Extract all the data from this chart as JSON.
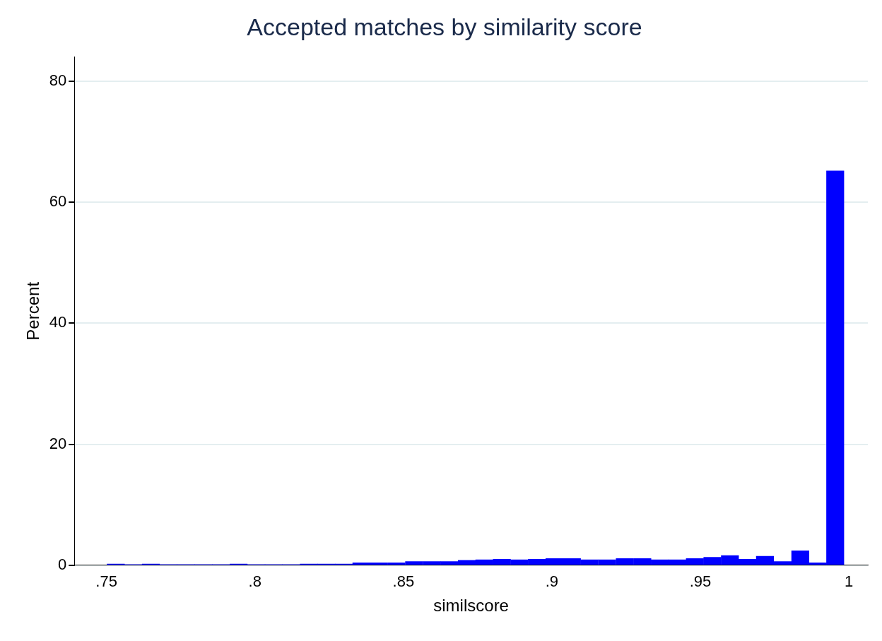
{
  "chart_data": {
    "type": "histogram",
    "title": "Accepted matches by similarity score",
    "xlabel": "similscore",
    "ylabel": "Percent",
    "bins": [
      0.7502,
      0.7561,
      0.762,
      0.7679,
      0.7738,
      0.7797,
      0.7856,
      0.7915,
      0.7975,
      0.8034,
      0.8093,
      0.8152,
      0.8211,
      0.827,
      0.8329,
      0.8388,
      0.8447,
      0.8506,
      0.8566,
      0.8625,
      0.8684,
      0.8743,
      0.8802,
      0.8861,
      0.892,
      0.8979,
      0.9038,
      0.9097,
      0.9156,
      0.9216,
      0.9275,
      0.9334,
      0.9393,
      0.9452,
      0.9511,
      0.957,
      0.9629,
      0.9688,
      0.9747,
      0.9807,
      0.9866,
      0.9925,
      0.9983
    ],
    "values": [
      0.2,
      0.1,
      0.2,
      0.1,
      0.1,
      0.1,
      0.1,
      0.2,
      0.1,
      0.1,
      0.1,
      0.2,
      0.2,
      0.2,
      0.4,
      0.4,
      0.4,
      0.6,
      0.6,
      0.6,
      0.8,
      0.9,
      1.0,
      0.9,
      1.0,
      1.1,
      1.1,
      0.9,
      0.9,
      1.1,
      1.1,
      0.9,
      0.9,
      1.1,
      1.3,
      1.6,
      1.0,
      1.5,
      0.6,
      2.4,
      0.4,
      65.2
    ],
    "color": "#0000ff",
    "xlim": [
      0.7392,
      1.0064
    ],
    "xticks": [
      {
        "value": 0.75,
        "label": ".75"
      },
      {
        "value": 0.8,
        "label": ".8"
      },
      {
        "value": 0.85,
        "label": ".85"
      },
      {
        "value": 0.9,
        "label": ".9"
      },
      {
        "value": 0.95,
        "label": ".95"
      },
      1
    ],
    "ylim": [
      0,
      84
    ],
    "yticks": [
      0,
      20,
      40,
      60,
      80
    ],
    "grid": "y",
    "legend": false
  }
}
